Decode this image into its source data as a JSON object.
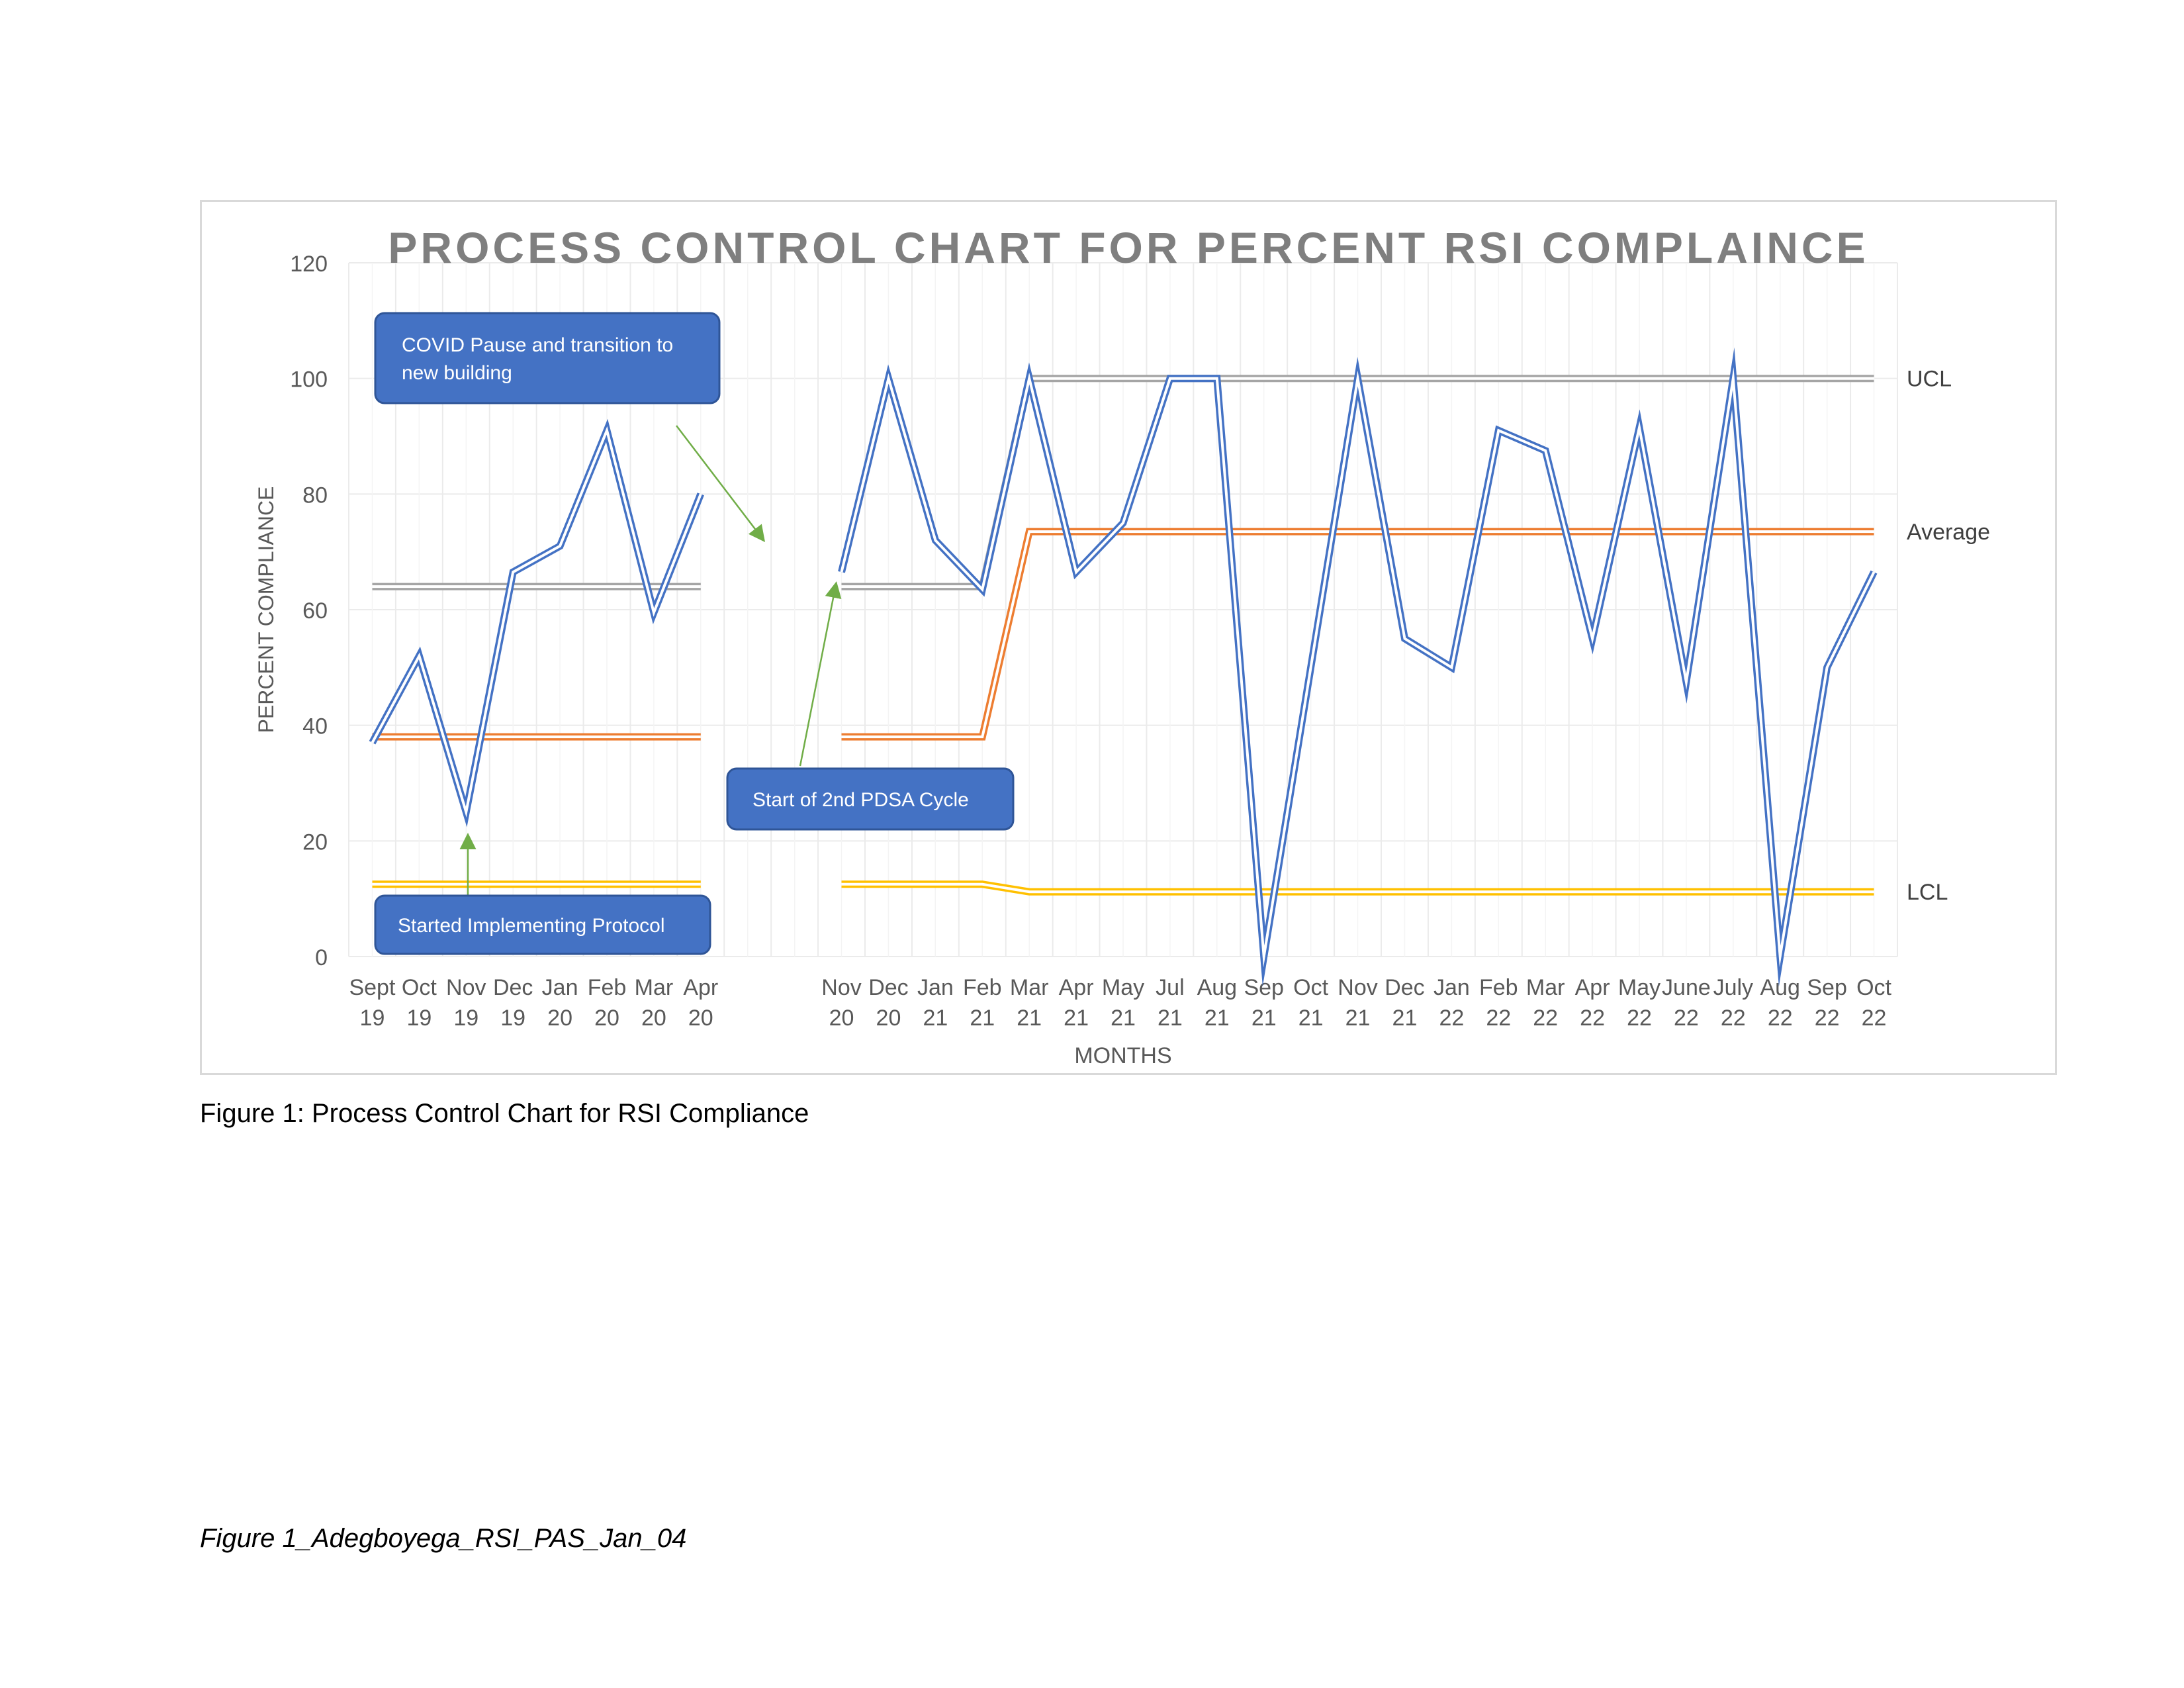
{
  "caption": "Figure 1: Process Control Chart for RSI Compliance",
  "file_note": "Figure 1_Adegboyega_RSI_PAS_Jan_04",
  "colors": {
    "compliance": "#4472C4",
    "ucl": "#A5A5A5",
    "average": "#ED7D31",
    "lcl": "#FFC000",
    "annotation_fill": "#4472C4",
    "annotation_border": "#2F5597",
    "arrow": "#70AD47",
    "grid": "#ebebeb",
    "title": "#7f7f7f",
    "axis_text": "#595959"
  },
  "chart_data": {
    "type": "line",
    "title": "PROCESS CONTROL CHART FOR PERCENT RSI COMPLAINCE",
    "xlabel": "MONTHS",
    "ylabel": "PERCENT COMPLIANCE",
    "ylim": [
      0,
      120
    ],
    "yticks": [
      0,
      20,
      40,
      60,
      80,
      100,
      120
    ],
    "grid": true,
    "categories": [
      [
        "Sept",
        "19"
      ],
      [
        "Oct",
        "19"
      ],
      [
        "Nov",
        "19"
      ],
      [
        "Dec",
        "19"
      ],
      [
        "Jan",
        "20"
      ],
      [
        "Feb",
        "20"
      ],
      [
        "Mar",
        "20"
      ],
      [
        "Apr",
        "20"
      ],
      [
        "",
        ""
      ],
      [
        "",
        ""
      ],
      [
        "Nov",
        "20"
      ],
      [
        "Dec",
        "20"
      ],
      [
        "Jan",
        "21"
      ],
      [
        "Feb",
        "21"
      ],
      [
        "Mar",
        "21"
      ],
      [
        "Apr",
        "21"
      ],
      [
        "May",
        "21"
      ],
      [
        "Jul",
        "21"
      ],
      [
        "Aug",
        "21"
      ],
      [
        "Sep",
        "21"
      ],
      [
        "Oct",
        "21"
      ],
      [
        "Nov",
        "21"
      ],
      [
        "Dec",
        "21"
      ],
      [
        "Jan",
        "22"
      ],
      [
        "Feb",
        "22"
      ],
      [
        "Mar",
        "22"
      ],
      [
        "Apr",
        "22"
      ],
      [
        "May",
        "22"
      ],
      [
        "June",
        "22"
      ],
      [
        "July",
        "22"
      ],
      [
        "Aug",
        "22"
      ],
      [
        "Sep",
        "22"
      ],
      [
        "Oct",
        "22"
      ]
    ],
    "series": [
      {
        "key": "compliance",
        "values": [
          37,
          52,
          25,
          66.5,
          71,
          91,
          59.5,
          80,
          null,
          null,
          66.5,
          100,
          72,
          63.5,
          100,
          66.5,
          75,
          100,
          100,
          0,
          50,
          100,
          55,
          50,
          91,
          87.5,
          55,
          91.5,
          47.5,
          100,
          0,
          50,
          66.5
        ]
      },
      {
        "key": "ucl",
        "name": "UCL",
        "values": [
          64,
          64,
          64,
          64,
          64,
          64,
          64,
          64,
          null,
          null,
          64,
          64,
          64,
          64,
          100,
          100,
          100,
          100,
          100,
          100,
          100,
          100,
          100,
          100,
          100,
          100,
          100,
          100,
          100,
          100,
          100,
          100,
          100
        ]
      },
      {
        "key": "average",
        "name": "Average",
        "values": [
          38,
          38,
          38,
          38,
          38,
          38,
          38,
          38,
          null,
          null,
          38,
          38,
          38,
          38,
          73.5,
          73.5,
          73.5,
          73.5,
          73.5,
          73.5,
          73.5,
          73.5,
          73.5,
          73.5,
          73.5,
          73.5,
          73.5,
          73.5,
          73.5,
          73.5,
          73.5,
          73.5,
          73.5
        ]
      },
      {
        "key": "lcl",
        "name": "LCL",
        "values": [
          12.5,
          12.5,
          12.5,
          12.5,
          12.5,
          12.5,
          12.5,
          12.5,
          null,
          null,
          12.5,
          12.5,
          12.5,
          12.5,
          11.2,
          11.2,
          11.2,
          11.2,
          11.2,
          11.2,
          11.2,
          11.2,
          11.2,
          11.2,
          11.2,
          11.2,
          11.2,
          11.2,
          11.2,
          11.2,
          11.2,
          11.2,
          11.2
        ]
      }
    ],
    "annotations": [
      {
        "text": [
          "COVID Pause and transition to",
          "new building"
        ]
      },
      {
        "text": [
          "Start of 2nd PDSA Cycle"
        ]
      },
      {
        "text": [
          "Started Implementing Protocol"
        ]
      }
    ]
  }
}
